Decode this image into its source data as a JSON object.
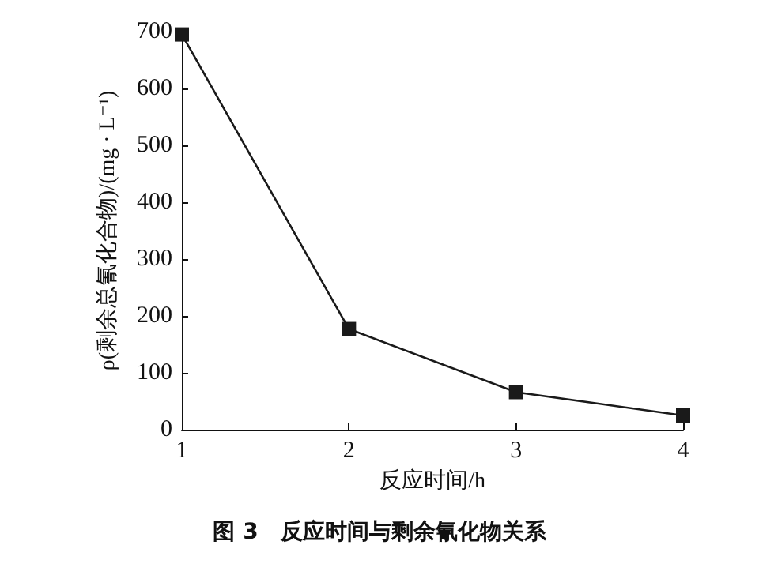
{
  "chart_data": {
    "type": "line",
    "x": [
      1,
      2,
      3,
      4
    ],
    "series": [
      {
        "color": "#1a1a1a",
        "values": [
          695,
          177,
          66,
          25
        ]
      }
    ],
    "xlim": [
      1,
      4
    ],
    "xticks": [
      1,
      2,
      3,
      4
    ],
    "ylim": [
      0,
      700
    ],
    "yticks": [
      0,
      100,
      200,
      300,
      400,
      500,
      600,
      700
    ],
    "xlabel": "反应时间/h",
    "ylabel": "ρ(剩余总氰化合物)/(mg · L⁻¹)",
    "annotations": [
      "图 3　反应时间与剩余氰化物关系"
    ],
    "marker": "square",
    "line_style": "solid",
    "grid": false
  }
}
